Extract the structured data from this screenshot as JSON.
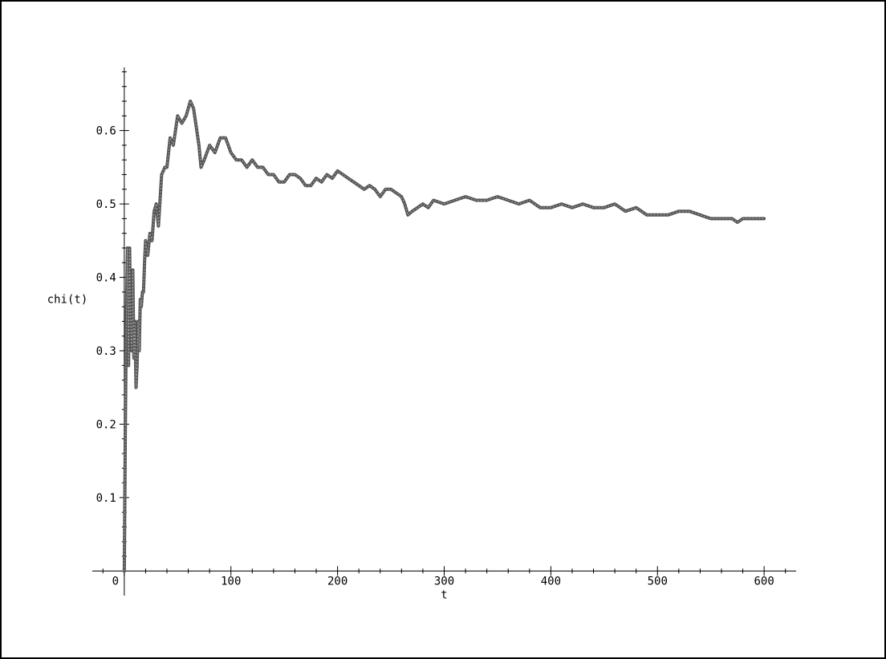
{
  "chart_data": {
    "type": "line",
    "title": "",
    "xlabel": "t",
    "ylabel": "chi(t)",
    "xlim": [
      -30,
      630
    ],
    "ylim": [
      -0.004,
      0.686
    ],
    "x_ticks": [
      0,
      100,
      200,
      300,
      400,
      500,
      600
    ],
    "x_tick_labels": [
      "0",
      "100",
      "200",
      "300",
      "400",
      "500",
      "600"
    ],
    "y_ticks": [
      0.1,
      0.2,
      0.3,
      0.4,
      0.5,
      0.6
    ],
    "y_tick_labels": [
      "0.1",
      "0.2",
      "0.3",
      "0.4",
      "0.5",
      "0.6"
    ],
    "x_minor_step": 20,
    "y_minor_step": 0.02,
    "grid": false,
    "legend": "none",
    "series": [
      {
        "color": "#555555",
        "x": [
          0,
          1,
          2,
          3,
          4,
          5,
          6,
          7,
          8,
          9,
          10,
          11,
          12,
          13,
          14,
          15,
          16,
          17,
          18,
          19,
          20,
          22,
          24,
          26,
          28,
          30,
          32,
          35,
          38,
          40,
          43,
          46,
          50,
          54,
          58,
          62,
          65,
          68,
          70,
          72,
          75,
          80,
          85,
          90,
          95,
          100,
          105,
          110,
          115,
          120,
          125,
          130,
          135,
          140,
          145,
          150,
          155,
          160,
          165,
          170,
          175,
          180,
          185,
          190,
          195,
          200,
          205,
          210,
          215,
          220,
          225,
          230,
          235,
          240,
          245,
          250,
          255,
          260,
          263,
          266,
          270,
          275,
          280,
          285,
          290,
          300,
          310,
          320,
          330,
          340,
          350,
          360,
          370,
          380,
          390,
          400,
          410,
          420,
          430,
          440,
          450,
          460,
          470,
          480,
          490,
          500,
          510,
          520,
          530,
          540,
          550,
          560,
          570,
          575,
          580,
          590,
          600
        ],
        "y": [
          0.0,
          0.2,
          0.35,
          0.44,
          0.28,
          0.44,
          0.33,
          0.3,
          0.41,
          0.29,
          0.34,
          0.25,
          0.28,
          0.34,
          0.3,
          0.37,
          0.36,
          0.38,
          0.38,
          0.42,
          0.45,
          0.43,
          0.46,
          0.45,
          0.49,
          0.5,
          0.47,
          0.54,
          0.55,
          0.55,
          0.59,
          0.58,
          0.62,
          0.61,
          0.62,
          0.64,
          0.63,
          0.6,
          0.58,
          0.55,
          0.56,
          0.58,
          0.57,
          0.59,
          0.59,
          0.57,
          0.56,
          0.56,
          0.55,
          0.56,
          0.55,
          0.55,
          0.54,
          0.54,
          0.53,
          0.53,
          0.54,
          0.54,
          0.535,
          0.525,
          0.525,
          0.535,
          0.53,
          0.54,
          0.535,
          0.545,
          0.54,
          0.535,
          0.53,
          0.525,
          0.52,
          0.525,
          0.52,
          0.51,
          0.52,
          0.52,
          0.515,
          0.51,
          0.5,
          0.485,
          0.49,
          0.495,
          0.5,
          0.495,
          0.505,
          0.5,
          0.505,
          0.51,
          0.505,
          0.505,
          0.51,
          0.505,
          0.5,
          0.505,
          0.495,
          0.495,
          0.5,
          0.495,
          0.5,
          0.495,
          0.495,
          0.5,
          0.49,
          0.495,
          0.485,
          0.485,
          0.485,
          0.49,
          0.49,
          0.485,
          0.48,
          0.48,
          0.48,
          0.475,
          0.48,
          0.48,
          0.48
        ]
      }
    ]
  }
}
